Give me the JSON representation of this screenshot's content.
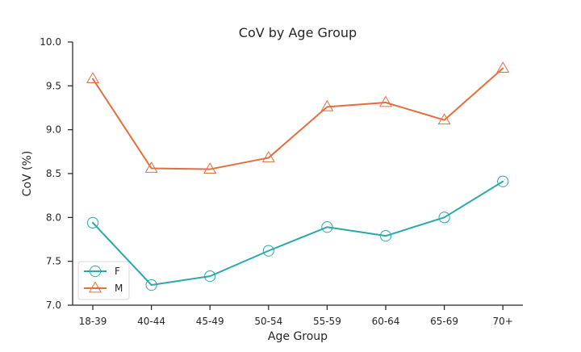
{
  "chart_data": {
    "type": "line",
    "title": "CoV by Age Group",
    "xlabel": "Age Group",
    "ylabel": "CoV (%)",
    "categories": [
      "18-39",
      "40-44",
      "45-49",
      "50-54",
      "55-59",
      "60-64",
      "65-69",
      "70+"
    ],
    "ylim": [
      7.0,
      10.0
    ],
    "yticks": [
      "7.0",
      "7.5",
      "8.0",
      "8.5",
      "9.0",
      "9.5",
      "10.0"
    ],
    "grid": false,
    "legend_position": "bottom-left",
    "series": [
      {
        "name": "F",
        "color": "#2ca8a8",
        "marker": "circle",
        "values": [
          7.94,
          7.23,
          7.33,
          7.62,
          7.89,
          7.79,
          8.0,
          8.41
        ]
      },
      {
        "name": "M",
        "color": "#e36f3f",
        "marker": "triangle",
        "values": [
          9.58,
          8.56,
          8.55,
          8.68,
          9.26,
          9.31,
          9.11,
          9.7
        ]
      }
    ]
  }
}
